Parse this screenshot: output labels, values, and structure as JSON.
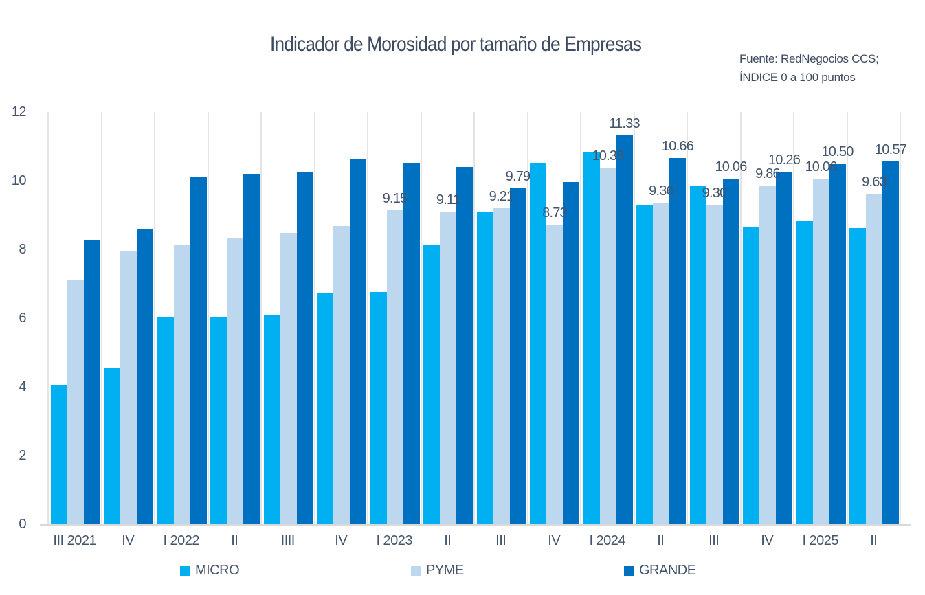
{
  "chart_data": {
    "type": "bar",
    "title": "Indicador de Morosidad por tamaño de Empresas",
    "source_line1": "Fuente: RedNegocios CCS;",
    "source_line2": "ÍNDICE 0 a 100  puntos",
    "categories": [
      "III 2021",
      "IV",
      "I 2022",
      "II",
      "IIII",
      "IV",
      "I 2023",
      "II",
      "III",
      "IV",
      "I 2024",
      "II",
      "III",
      "IV",
      "I 2025",
      "II"
    ],
    "series": [
      {
        "name": "MICRO",
        "color": "#00B0F0",
        "values": [
          4.07,
          4.56,
          6.02,
          6.04,
          6.1,
          6.72,
          6.76,
          8.13,
          9.08,
          10.53,
          10.85,
          9.31,
          9.84,
          8.67,
          8.83,
          8.63
        ],
        "labels": [
          null,
          null,
          null,
          null,
          null,
          null,
          null,
          null,
          null,
          null,
          null,
          null,
          null,
          null,
          null,
          null
        ]
      },
      {
        "name": "PYME",
        "color": "#BDD7EE",
        "values": [
          7.12,
          7.97,
          8.15,
          8.35,
          8.49,
          8.69,
          9.15,
          9.11,
          9.21,
          8.73,
          10.38,
          9.36,
          9.3,
          9.86,
          10.06,
          9.63
        ],
        "labels": [
          null,
          null,
          null,
          null,
          null,
          null,
          "9.15",
          "9.11",
          "9.21",
          "8.73",
          "10.38",
          "9.36",
          "9.30",
          "9.86",
          "10.06",
          "9.63"
        ]
      },
      {
        "name": "GRANDE",
        "color": "#0070C0",
        "values": [
          8.27,
          8.59,
          10.13,
          10.21,
          10.26,
          10.62,
          10.53,
          10.41,
          9.79,
          9.97,
          11.33,
          10.66,
          10.06,
          10.26,
          10.5,
          10.57
        ],
        "labels": [
          null,
          null,
          null,
          null,
          null,
          null,
          null,
          null,
          "9.79",
          null,
          "11.33",
          "10.66",
          "10.06",
          "10.26",
          "10.50",
          "10.57"
        ]
      }
    ],
    "y_axis": {
      "min": 0,
      "max": 12,
      "ticks": [
        0,
        2,
        4,
        6,
        8,
        10,
        12
      ]
    },
    "legend": {
      "position": "bottom"
    },
    "grid": "vertical",
    "colors": {
      "text": "#44546A",
      "gridline": "#E4E4E4",
      "baseline": "#D9D9D9"
    }
  }
}
